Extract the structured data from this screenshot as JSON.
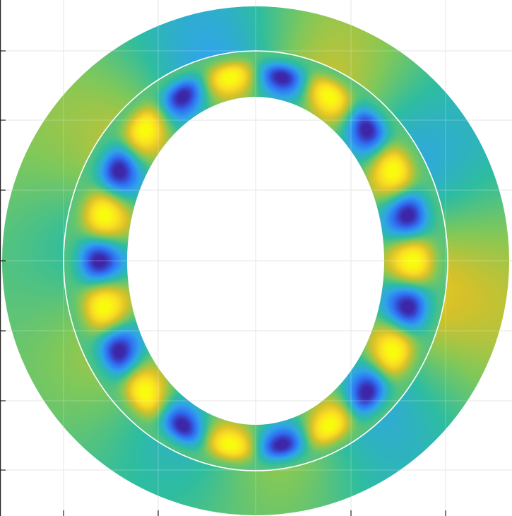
{
  "chart_data": {
    "type": "heatmap",
    "title": "",
    "xlabel": "",
    "ylabel": "",
    "grid": true,
    "outer_boundary": {
      "shape": "ellipse",
      "rx": 1.33,
      "ry": 1.33
    },
    "hole_boundary": {
      "shape": "ellipse",
      "rx": 0.67,
      "ry": 0.86
    },
    "contour": {
      "shape": "ellipse",
      "rx": 1.0,
      "ry": 1.1,
      "color": "#ffffff"
    },
    "x_ticks": [
      -1.0,
      -0.5,
      0.5,
      1.0
    ],
    "y_ticks": [
      1.1,
      0.73,
      0.37,
      0.0,
      -0.37,
      -0.73,
      -1.1
    ],
    "xlim": [
      -1.33,
      1.33
    ],
    "ylim": [
      -1.33,
      1.38
    ],
    "colormap": [
      "#3e26a8",
      "#2f6ff4",
      "#2fa5e8",
      "#2ebda0",
      "#7ec85b",
      "#d6c129",
      "#fadc24",
      "#f9fb0e"
    ],
    "mode": {
      "angular_order": 11,
      "radial_peak": 0.82,
      "decay_outside": 2.6
    }
  }
}
